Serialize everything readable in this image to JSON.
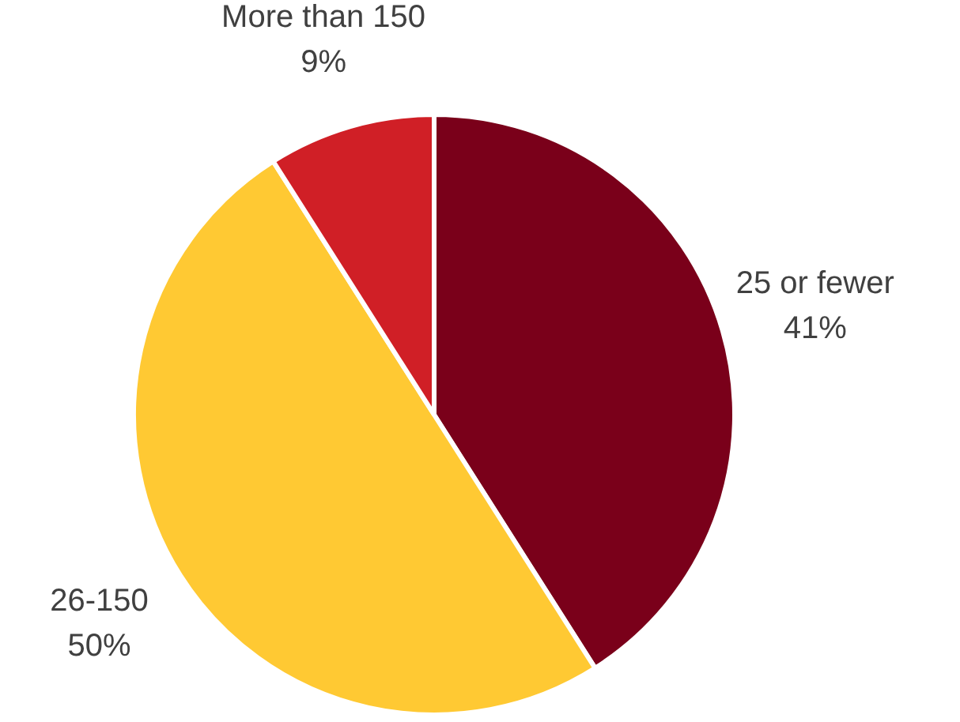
{
  "chart_data": {
    "type": "pie",
    "categories": [
      "25 or fewer",
      "26-150",
      "More than 150"
    ],
    "values": [
      41,
      50,
      9
    ],
    "value_labels": [
      "41%",
      "50%",
      "9%"
    ],
    "colors": [
      "#7a001a",
      "#ffc933",
      "#d01f26"
    ]
  }
}
